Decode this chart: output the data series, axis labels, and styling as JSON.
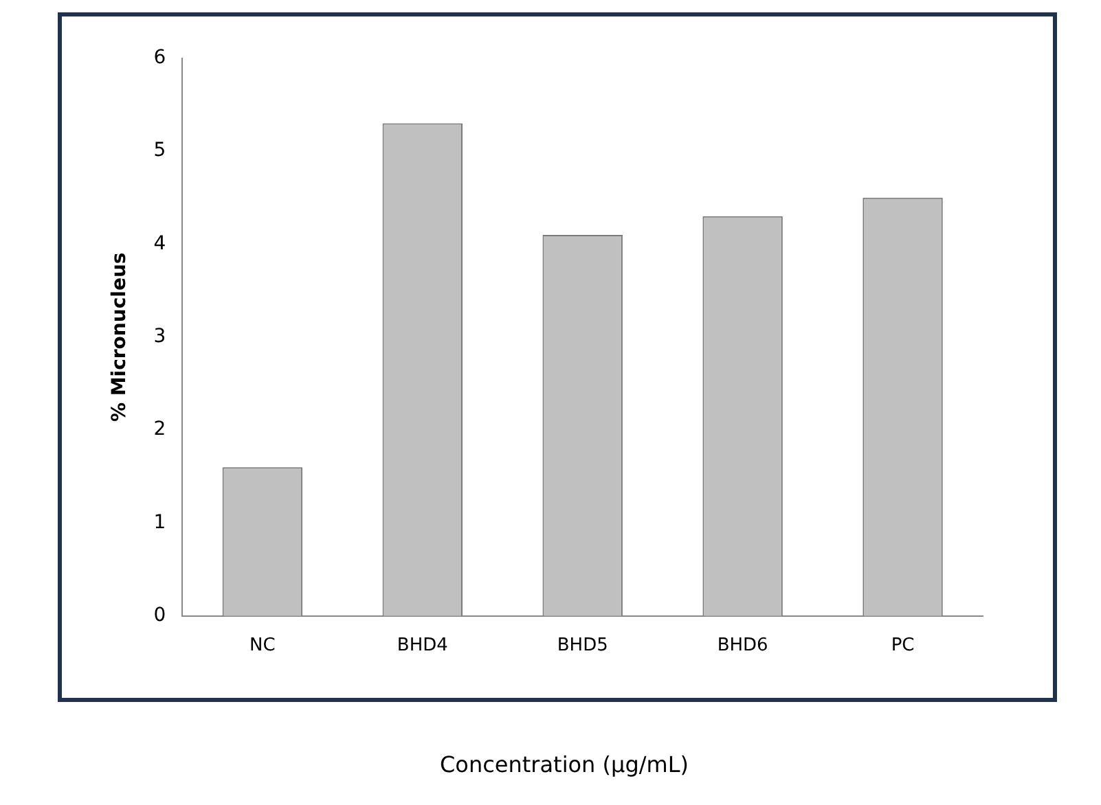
{
  "chart_data": {
    "type": "bar",
    "xlabel": "Concentration (µg/mL)",
    "ylabel": "% Micronucleus",
    "categories": [
      "NC",
      "BHD4",
      "BHD5",
      "BHD6",
      "PC"
    ],
    "values": [
      1.6,
      5.3,
      4.1,
      4.3,
      4.5
    ],
    "color": "#c0c0c0",
    "ylim": [
      0,
      6
    ],
    "yticks": [
      0,
      1,
      2,
      3,
      4,
      5,
      6
    ],
    "grid": false,
    "legend": false
  }
}
